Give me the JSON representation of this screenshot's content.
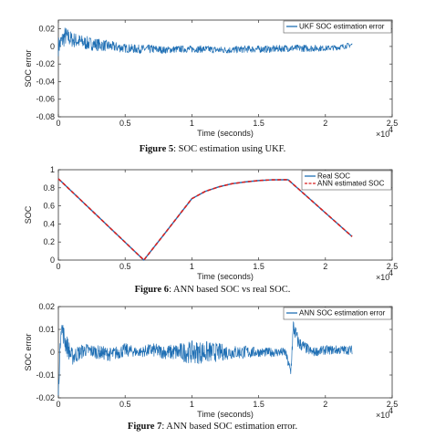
{
  "chart_data": [
    {
      "type": "line",
      "ylabel": "SOC error",
      "xlabel": "Time (seconds)",
      "x_multiplier": "×10",
      "x_multiplier_exp": "4",
      "xlim": [
        0,
        2.5
      ],
      "ylim": [
        -0.08,
        0.03
      ],
      "xticks": [
        0,
        0.5,
        1,
        1.5,
        2,
        2.5
      ],
      "xtick_labels": [
        "0",
        "0.5",
        "1",
        "1.5",
        "2",
        "2.5"
      ],
      "yticks": [
        0.02,
        0,
        -0.02,
        -0.04,
        -0.06,
        -0.08
      ],
      "ytick_labels": [
        "0.02",
        "0",
        "-0.02",
        "-0.04",
        "-0.06",
        "-0.08"
      ],
      "legend_position": "top-right",
      "series": [
        {
          "name": "UKF SOC estimation error",
          "color": "#1f6fb4",
          "x": [
            0,
            0.05,
            0.1,
            0.2,
            0.3,
            0.4,
            0.5,
            0.6,
            0.7,
            0.8,
            0.9,
            1.0,
            1.1,
            1.2,
            1.3,
            1.4,
            1.5,
            1.6,
            1.7,
            1.8,
            1.9,
            2.0,
            2.1,
            2.2
          ],
          "y": [
            0.0,
            0.012,
            0.008,
            0.004,
            0.002,
            0.0,
            -0.002,
            -0.003,
            -0.003,
            -0.004,
            -0.003,
            -0.003,
            -0.003,
            -0.004,
            -0.004,
            -0.003,
            -0.003,
            -0.003,
            -0.002,
            -0.002,
            -0.002,
            -0.002,
            -0.001,
            0.002
          ],
          "noise": [
            0.011,
            0.011,
            0.009,
            0.008,
            0.007,
            0.006,
            0.005,
            0.005,
            0.005,
            0.004,
            0.004,
            0.004,
            0.004,
            0.004,
            0.004,
            0.004,
            0.004,
            0.004,
            0.004,
            0.004,
            0.004,
            0.003,
            0.003,
            0.003
          ]
        }
      ]
    },
    {
      "type": "line",
      "ylabel": "SOC",
      "xlabel": "Time (seconds)",
      "x_multiplier": "×10",
      "x_multiplier_exp": "4",
      "xlim": [
        0,
        2.5
      ],
      "ylim": [
        0,
        1
      ],
      "xticks": [
        0,
        0.5,
        1,
        1.5,
        2,
        2.5
      ],
      "xtick_labels": [
        "0",
        "0.5",
        "1",
        "1.5",
        "2",
        "2.5"
      ],
      "yticks": [
        1,
        0.8,
        0.6,
        0.4,
        0.2,
        0
      ],
      "ytick_labels": [
        "1",
        "0.8",
        "0.6",
        "0.4",
        "0.2",
        "0"
      ],
      "legend_position": "top-right",
      "series": [
        {
          "name": "Real SOC",
          "color": "#1f6fb4",
          "style": "solid",
          "x": [
            0,
            0.64,
            0.8,
            1.0,
            1.1,
            1.2,
            1.3,
            1.4,
            1.5,
            1.6,
            1.72,
            2.2
          ],
          "y": [
            0.9,
            0.0,
            0.3,
            0.68,
            0.76,
            0.81,
            0.845,
            0.865,
            0.88,
            0.888,
            0.89,
            0.26
          ]
        },
        {
          "name": "ANN estimated SOC",
          "color": "#d62020",
          "style": "dashed",
          "x": [
            0,
            0.64,
            0.8,
            1.0,
            1.1,
            1.2,
            1.3,
            1.4,
            1.5,
            1.6,
            1.72,
            2.2
          ],
          "y": [
            0.9,
            0.0,
            0.3,
            0.68,
            0.76,
            0.81,
            0.845,
            0.865,
            0.88,
            0.888,
            0.89,
            0.26
          ]
        }
      ]
    },
    {
      "type": "line",
      "ylabel": "SOC error",
      "xlabel": "Time (seconds)",
      "x_multiplier": "×10",
      "x_multiplier_exp": "4",
      "xlim": [
        0,
        2.5
      ],
      "ylim": [
        -0.02,
        0.02
      ],
      "xticks": [
        0,
        0.5,
        1,
        1.5,
        2,
        2.5
      ],
      "xtick_labels": [
        "0",
        "0.5",
        "1",
        "1.5",
        "2",
        "2.5"
      ],
      "yticks": [
        0.02,
        0.01,
        0,
        -0.01,
        -0.02
      ],
      "ytick_labels": [
        "0.02",
        "0.01",
        "0",
        "-0.01",
        "-0.02"
      ],
      "legend_position": "top-right",
      "series": [
        {
          "name": "ANN SOC estimation error",
          "color": "#1f6fb4",
          "x": [
            0,
            0.02,
            0.05,
            0.1,
            0.2,
            0.3,
            0.4,
            0.5,
            0.6,
            0.7,
            0.8,
            0.9,
            1.0,
            1.1,
            1.2,
            1.3,
            1.4,
            1.5,
            1.6,
            1.7,
            1.74,
            1.76,
            1.8,
            1.9,
            2.0,
            2.1,
            2.2
          ],
          "y": [
            -0.018,
            0.012,
            0.005,
            -0.002,
            0.001,
            0.0,
            -0.001,
            0.001,
            0.0,
            0.001,
            0.0,
            0.0,
            0.0,
            0.0,
            0.0,
            0.0,
            0.0,
            0.0,
            0.0,
            0.0,
            -0.009,
            0.011,
            0.004,
            0.0,
            0.001,
            0.001,
            0.001
          ],
          "noise": [
            0.003,
            0.004,
            0.005,
            0.004,
            0.003,
            0.003,
            0.003,
            0.003,
            0.002,
            0.003,
            0.003,
            0.004,
            0.005,
            0.005,
            0.004,
            0.003,
            0.003,
            0.002,
            0.002,
            0.002,
            0.003,
            0.004,
            0.003,
            0.002,
            0.002,
            0.002,
            0.002
          ]
        }
      ]
    }
  ],
  "captions": [
    {
      "label": "Figure 5",
      "text": ": SOC estimation using UKF."
    },
    {
      "label": "Figure 6",
      "text": ": ANN based SOC vs real SOC."
    },
    {
      "label": "Figure 7",
      "text": ": ANN based SOC estimation error."
    }
  ]
}
